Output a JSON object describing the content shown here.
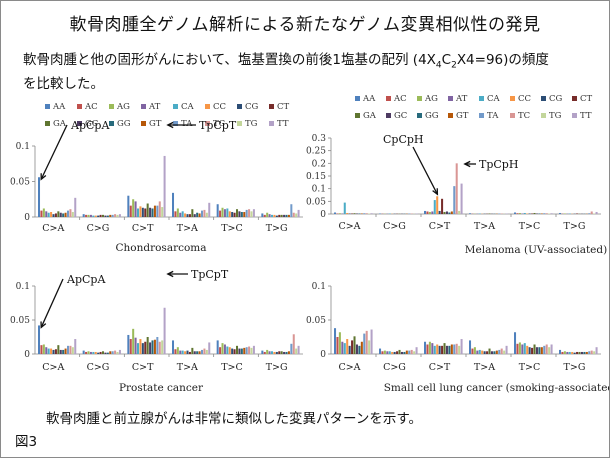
{
  "title": "軟骨肉腫全ゲノム解析による新たなゲノム変異相似性の発見",
  "subtitle": {
    "line1_before": "軟骨肉腫と他の固形がんにおいて、塩基置換の前後1塩基の配列 (4X",
    "sub1": "4",
    "mid": "C",
    "sub2": "2",
    "line1_after": "X4=96)の頻度",
    "line2": "を比較した。"
  },
  "footer_text": "軟骨肉腫と前立腺がんは非常に類似した変異パターンを示す。",
  "figure_label": "図3",
  "colors": {
    "AA": "#4f81bd",
    "AC": "#c0504d",
    "AG": "#9bbb59",
    "AT": "#8064a2",
    "CA": "#4bacc6",
    "CC": "#f79646",
    "CG": "#2c4d75",
    "CT": "#772c2a",
    "GA": "#5f7530",
    "GC": "#4d3b62",
    "GG": "#276a7c",
    "GT": "#b65708",
    "TA": "#729aca",
    "TC": "#d99694",
    "TG": "#c3d69b",
    "TT": "#b3a2c7"
  },
  "chart_data": [
    {
      "type": "bar",
      "title": "Chondrosarcoma",
      "categories": [
        "C>A",
        "C>G",
        "C>T",
        "T>A",
        "T>C",
        "T>G"
      ],
      "series_names": [
        "AA",
        "AC",
        "AG",
        "AT",
        "CA",
        "CC",
        "CG",
        "CT",
        "GA",
        "GC",
        "GG",
        "GT",
        "TA",
        "TC",
        "TG",
        "TT"
      ],
      "ylim": [
        0,
        0.1
      ],
      "yticks": [
        "0",
        "0.05",
        "0.1"
      ],
      "values": {
        "C>A": [
          0.056,
          0.009,
          0.012,
          0.008,
          0.006,
          0.007,
          0.004,
          0.005,
          0.008,
          0.006,
          0.005,
          0.006,
          0.009,
          0.011,
          0.007,
          0.027
        ],
        "C>G": [
          0.004,
          0.003,
          0.003,
          0.003,
          0.002,
          0.002,
          0.002,
          0.003,
          0.003,
          0.002,
          0.002,
          0.003,
          0.003,
          0.004,
          0.003,
          0.004
        ],
        "C>T": [
          0.03,
          0.016,
          0.025,
          0.022,
          0.012,
          0.015,
          0.013,
          0.012,
          0.019,
          0.013,
          0.012,
          0.016,
          0.016,
          0.022,
          0.014,
          0.086
        ],
        "T>A": [
          0.034,
          0.008,
          0.012,
          0.006,
          0.008,
          0.005,
          0.004,
          0.004,
          0.011,
          0.004,
          0.006,
          0.005,
          0.009,
          0.01,
          0.006,
          0.02
        ],
        "T>C": [
          0.018,
          0.009,
          0.013,
          0.011,
          0.012,
          0.008,
          0.007,
          0.006,
          0.011,
          0.008,
          0.007,
          0.007,
          0.01,
          0.011,
          0.008,
          0.011
        ],
        "T>G": [
          0.005,
          0.003,
          0.006,
          0.004,
          0.003,
          0.003,
          0.002,
          0.003,
          0.003,
          0.003,
          0.003,
          0.003,
          0.018,
          0.006,
          0.005,
          0.01
        ]
      },
      "annotations": [
        {
          "text": "ApCpA",
          "category": "C>A",
          "series": "AA"
        },
        {
          "text": "TpCpT",
          "category": "C>T",
          "series": "TT"
        }
      ]
    },
    {
      "type": "bar",
      "title": "Melanoma (UV-associated)",
      "categories": [
        "C>A",
        "C>G",
        "C>T",
        "T>A",
        "T>C",
        "T>G"
      ],
      "series_names": [
        "AA",
        "AC",
        "AG",
        "AT",
        "CA",
        "CC",
        "CG",
        "CT",
        "GA",
        "GC",
        "GG",
        "GT",
        "TA",
        "TC",
        "TG",
        "TT"
      ],
      "ylim": [
        0,
        0.3
      ],
      "yticks": [
        "0",
        "0.05",
        "0.1",
        "0.15",
        "0.2",
        "0.25",
        "0.3"
      ],
      "values": {
        "C>A": [
          0.006,
          0.002,
          0.003,
          0.002,
          0.045,
          0.004,
          0.002,
          0.002,
          0.003,
          0.002,
          0.002,
          0.002,
          0.003,
          0.003,
          0.002,
          0.003
        ],
        "C>G": [
          0.002,
          0.001,
          0.001,
          0.001,
          0.002,
          0.001,
          0.001,
          0.001,
          0.001,
          0.001,
          0.001,
          0.001,
          0.002,
          0.002,
          0.001,
          0.002
        ],
        "C>T": [
          0.012,
          0.01,
          0.008,
          0.01,
          0.055,
          0.07,
          0.012,
          0.06,
          0.008,
          0.01,
          0.006,
          0.01,
          0.11,
          0.2,
          0.012,
          0.12
        ],
        "T>A": [
          0.003,
          0.001,
          0.001,
          0.001,
          0.002,
          0.001,
          0.001,
          0.001,
          0.002,
          0.001,
          0.001,
          0.001,
          0.002,
          0.002,
          0.001,
          0.002
        ],
        "T>C": [
          0.006,
          0.003,
          0.004,
          0.002,
          0.004,
          0.002,
          0.002,
          0.002,
          0.004,
          0.002,
          0.002,
          0.002,
          0.003,
          0.003,
          0.002,
          0.003
        ],
        "T>G": [
          0.004,
          0.001,
          0.002,
          0.001,
          0.002,
          0.001,
          0.001,
          0.002,
          0.001,
          0.001,
          0.001,
          0.001,
          0.003,
          0.01,
          0.002,
          0.008
        ]
      },
      "annotations": [
        {
          "text": "CpCpH",
          "category": "C>T",
          "series": "CC"
        },
        {
          "text": "TpCpH",
          "category": "C>T",
          "series": "TT"
        }
      ]
    },
    {
      "type": "bar",
      "title": "Prostate cancer",
      "categories": [
        "C>A",
        "C>G",
        "C>T",
        "T>A",
        "T>C",
        "T>G"
      ],
      "series_names": [
        "AA",
        "AC",
        "AG",
        "AT",
        "CA",
        "CC",
        "CG",
        "CT",
        "GA",
        "GC",
        "GG",
        "GT",
        "TA",
        "TC",
        "TG",
        "TT"
      ],
      "ylim": [
        0,
        0.1
      ],
      "yticks": [
        "0",
        "0.05",
        "0.1"
      ],
      "values": {
        "C>A": [
          0.042,
          0.013,
          0.014,
          0.01,
          0.008,
          0.008,
          0.006,
          0.007,
          0.013,
          0.006,
          0.006,
          0.008,
          0.012,
          0.012,
          0.01,
          0.022
        ],
        "C>G": [
          0.005,
          0.003,
          0.004,
          0.003,
          0.003,
          0.003,
          0.002,
          0.003,
          0.004,
          0.002,
          0.002,
          0.004,
          0.004,
          0.005,
          0.003,
          0.006
        ],
        "C>T": [
          0.028,
          0.022,
          0.037,
          0.024,
          0.016,
          0.022,
          0.016,
          0.018,
          0.025,
          0.017,
          0.02,
          0.021,
          0.025,
          0.018,
          0.02,
          0.068
        ],
        "T>A": [
          0.02,
          0.007,
          0.01,
          0.005,
          0.005,
          0.004,
          0.005,
          0.003,
          0.009,
          0.004,
          0.004,
          0.004,
          0.006,
          0.008,
          0.006,
          0.017
        ],
        "T>C": [
          0.02,
          0.01,
          0.016,
          0.014,
          0.011,
          0.01,
          0.008,
          0.007,
          0.012,
          0.008,
          0.008,
          0.009,
          0.01,
          0.011,
          0.009,
          0.012
        ],
        "T>G": [
          0.005,
          0.003,
          0.006,
          0.004,
          0.004,
          0.003,
          0.003,
          0.004,
          0.004,
          0.003,
          0.003,
          0.004,
          0.015,
          0.029,
          0.008,
          0.012
        ]
      },
      "annotations": [
        {
          "text": "ApCpA",
          "category": "C>A",
          "series": "AA"
        },
        {
          "text": "TpCpT",
          "category": "C>T",
          "series": "TT"
        }
      ]
    },
    {
      "type": "bar",
      "title": "Small cell lung cancer (smoking-associated)",
      "categories": [
        "C>A",
        "C>G",
        "C>T",
        "T>A",
        "T>C",
        "T>G"
      ],
      "series_names": [
        "AA",
        "AC",
        "AG",
        "AT",
        "CA",
        "CC",
        "CG",
        "CT",
        "GA",
        "GC",
        "GG",
        "GT",
        "TA",
        "TC",
        "TG",
        "TT"
      ],
      "ylim": [
        0,
        0.1
      ],
      "yticks": [
        "0",
        "0.05",
        "0.1"
      ],
      "values": {
        "C>A": [
          0.038,
          0.025,
          0.032,
          0.018,
          0.016,
          0.022,
          0.012,
          0.02,
          0.026,
          0.014,
          0.012,
          0.018,
          0.03,
          0.034,
          0.02,
          0.036
        ],
        "C>G": [
          0.008,
          0.004,
          0.005,
          0.004,
          0.004,
          0.003,
          0.003,
          0.004,
          0.006,
          0.003,
          0.003,
          0.005,
          0.005,
          0.006,
          0.004,
          0.01
        ],
        "C>T": [
          0.018,
          0.014,
          0.018,
          0.016,
          0.012,
          0.014,
          0.012,
          0.012,
          0.016,
          0.012,
          0.012,
          0.014,
          0.014,
          0.015,
          0.012,
          0.022
        ],
        "T>A": [
          0.02,
          0.008,
          0.01,
          0.005,
          0.006,
          0.005,
          0.004,
          0.004,
          0.008,
          0.004,
          0.004,
          0.005,
          0.006,
          0.008,
          0.005,
          0.012
        ],
        "T>C": [
          0.032,
          0.015,
          0.017,
          0.014,
          0.016,
          0.012,
          0.01,
          0.009,
          0.014,
          0.01,
          0.01,
          0.01,
          0.012,
          0.014,
          0.01,
          0.014
        ],
        "T>G": [
          0.006,
          0.003,
          0.004,
          0.003,
          0.003,
          0.003,
          0.002,
          0.003,
          0.003,
          0.003,
          0.003,
          0.003,
          0.004,
          0.005,
          0.004,
          0.01
        ]
      },
      "annotations": []
    }
  ]
}
